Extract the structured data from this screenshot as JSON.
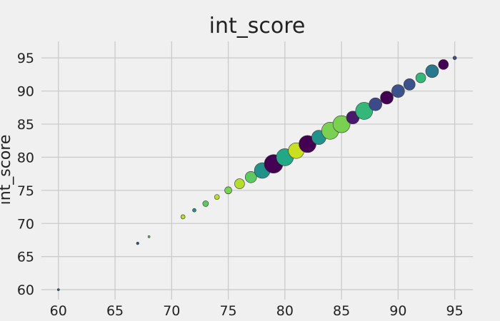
{
  "chart_data": {
    "type": "scatter",
    "title": "int_score",
    "xlabel": "",
    "ylabel": "int_score",
    "xlim": [
      58.5,
      96.6
    ],
    "ylim": [
      58.5,
      97.5
    ],
    "xticks": [
      60,
      65,
      70,
      75,
      80,
      85,
      90,
      95
    ],
    "yticks": [
      60,
      65,
      70,
      75,
      80,
      85,
      90,
      95
    ],
    "grid": true,
    "background": "#f0f0f0",
    "points": [
      {
        "x": 60,
        "y": 60,
        "size": 1.5,
        "color": "#3b528b"
      },
      {
        "x": 67,
        "y": 67,
        "size": 1.8,
        "color": "#3b528b"
      },
      {
        "x": 68,
        "y": 68,
        "size": 1.5,
        "color": "#5ec962"
      },
      {
        "x": 71,
        "y": 71,
        "size": 3,
        "color": "#b5de2b"
      },
      {
        "x": 72,
        "y": 72,
        "size": 2.5,
        "color": "#21918c"
      },
      {
        "x": 73,
        "y": 73,
        "size": 4,
        "color": "#5ec962"
      },
      {
        "x": 74,
        "y": 74,
        "size": 3.5,
        "color": "#b5de2b"
      },
      {
        "x": 75,
        "y": 75,
        "size": 5,
        "color": "#7ad151"
      },
      {
        "x": 76,
        "y": 76,
        "size": 7,
        "color": "#b5de2b"
      },
      {
        "x": 77,
        "y": 77,
        "size": 8,
        "color": "#5ec962"
      },
      {
        "x": 78,
        "y": 78,
        "size": 11,
        "color": "#21918c"
      },
      {
        "x": 79,
        "y": 79,
        "size": 13,
        "color": "#440154"
      },
      {
        "x": 80,
        "y": 80,
        "size": 12,
        "color": "#22a884"
      },
      {
        "x": 81,
        "y": 81,
        "size": 11,
        "color": "#c8e020"
      },
      {
        "x": 82,
        "y": 82,
        "size": 12,
        "color": "#440154"
      },
      {
        "x": 83,
        "y": 83,
        "size": 10,
        "color": "#21918c"
      },
      {
        "x": 84,
        "y": 84,
        "size": 12,
        "color": "#7ad151"
      },
      {
        "x": 85,
        "y": 85,
        "size": 12,
        "color": "#7ad151"
      },
      {
        "x": 86,
        "y": 86,
        "size": 9,
        "color": "#481a6c"
      },
      {
        "x": 87,
        "y": 87,
        "size": 12,
        "color": "#35b779"
      },
      {
        "x": 88,
        "y": 88,
        "size": 9,
        "color": "#3e4989"
      },
      {
        "x": 89,
        "y": 89,
        "size": 9,
        "color": "#440154"
      },
      {
        "x": 90,
        "y": 90,
        "size": 9,
        "color": "#3b528b"
      },
      {
        "x": 91,
        "y": 91,
        "size": 8,
        "color": "#3b528b"
      },
      {
        "x": 92,
        "y": 92,
        "size": 7,
        "color": "#35b779"
      },
      {
        "x": 93,
        "y": 93,
        "size": 9,
        "color": "#2a788e"
      },
      {
        "x": 94,
        "y": 94,
        "size": 7,
        "color": "#440154"
      },
      {
        "x": 95,
        "y": 95,
        "size": 2.5,
        "color": "#3b528b"
      }
    ]
  }
}
